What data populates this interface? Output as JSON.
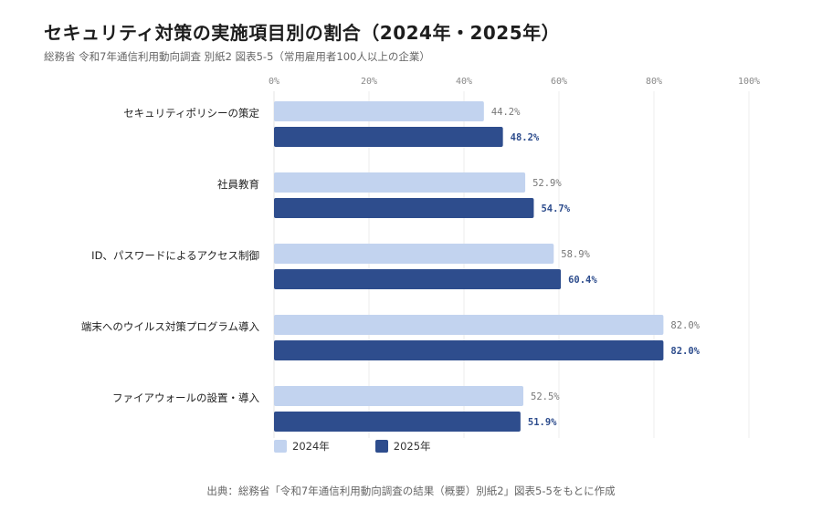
{
  "header": {
    "title": "セキュリティ対策の実施項目別の割合（2024年・2025年）",
    "subtitle": "総務省 令和7年通信利用動向調査 別紙2 図表5-5（常用雇用者100人以上の企業）"
  },
  "footer": {
    "source": "出典：総務省「令和7年通信利用動向調査の結果（概要）別紙2」図表5-5をもとに作成"
  },
  "colors": {
    "series_2024": "#c2d3ef",
    "series_2025": "#2e4d8d",
    "grid": "#eeeeee"
  },
  "chart_data": {
    "type": "bar",
    "orientation": "horizontal",
    "categories": [
      "セキュリティポリシーの策定",
      "社員教育",
      "ID、パスワードによるアクセス制御",
      "端末へのウイルス対策プログラム導入",
      "ファイアウォールの設置・導入"
    ],
    "series": [
      {
        "name": "2024年",
        "values": [
          44.2,
          52.9,
          58.9,
          82.0,
          52.5
        ],
        "labels": [
          "44.2%",
          "52.9%",
          "58.9%",
          "82.0%",
          "52.5%"
        ]
      },
      {
        "name": "2025年",
        "values": [
          48.2,
          54.7,
          60.4,
          82.0,
          51.9
        ],
        "labels": [
          "48.2%",
          "54.7%",
          "60.4%",
          "82.0%",
          "51.9%"
        ]
      }
    ],
    "xlim": [
      0,
      100
    ],
    "ticks": [
      "0%",
      "20%",
      "40%",
      "60%",
      "80%",
      "100%"
    ],
    "tick_values": [
      0,
      20,
      40,
      60,
      80,
      100
    ],
    "grid": true,
    "legend": "bottom-left"
  }
}
